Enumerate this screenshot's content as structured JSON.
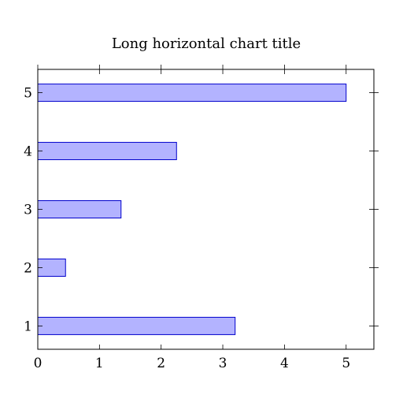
{
  "chart_data": {
    "type": "bar",
    "orientation": "horizontal",
    "title": "Long horizontal chart title",
    "xlabel": "",
    "ylabel": "",
    "categories": [
      "1",
      "2",
      "3",
      "4",
      "5"
    ],
    "values": [
      3.2,
      0.45,
      1.35,
      2.25,
      5.0
    ],
    "xlim": [
      0,
      5.45
    ],
    "ylim": [
      0.6,
      5.4
    ],
    "xticks": [
      "0",
      "1",
      "2",
      "3",
      "4",
      "5"
    ],
    "grid": false,
    "bar_fill": "#b3b3ff",
    "bar_stroke": "#0000cc"
  }
}
